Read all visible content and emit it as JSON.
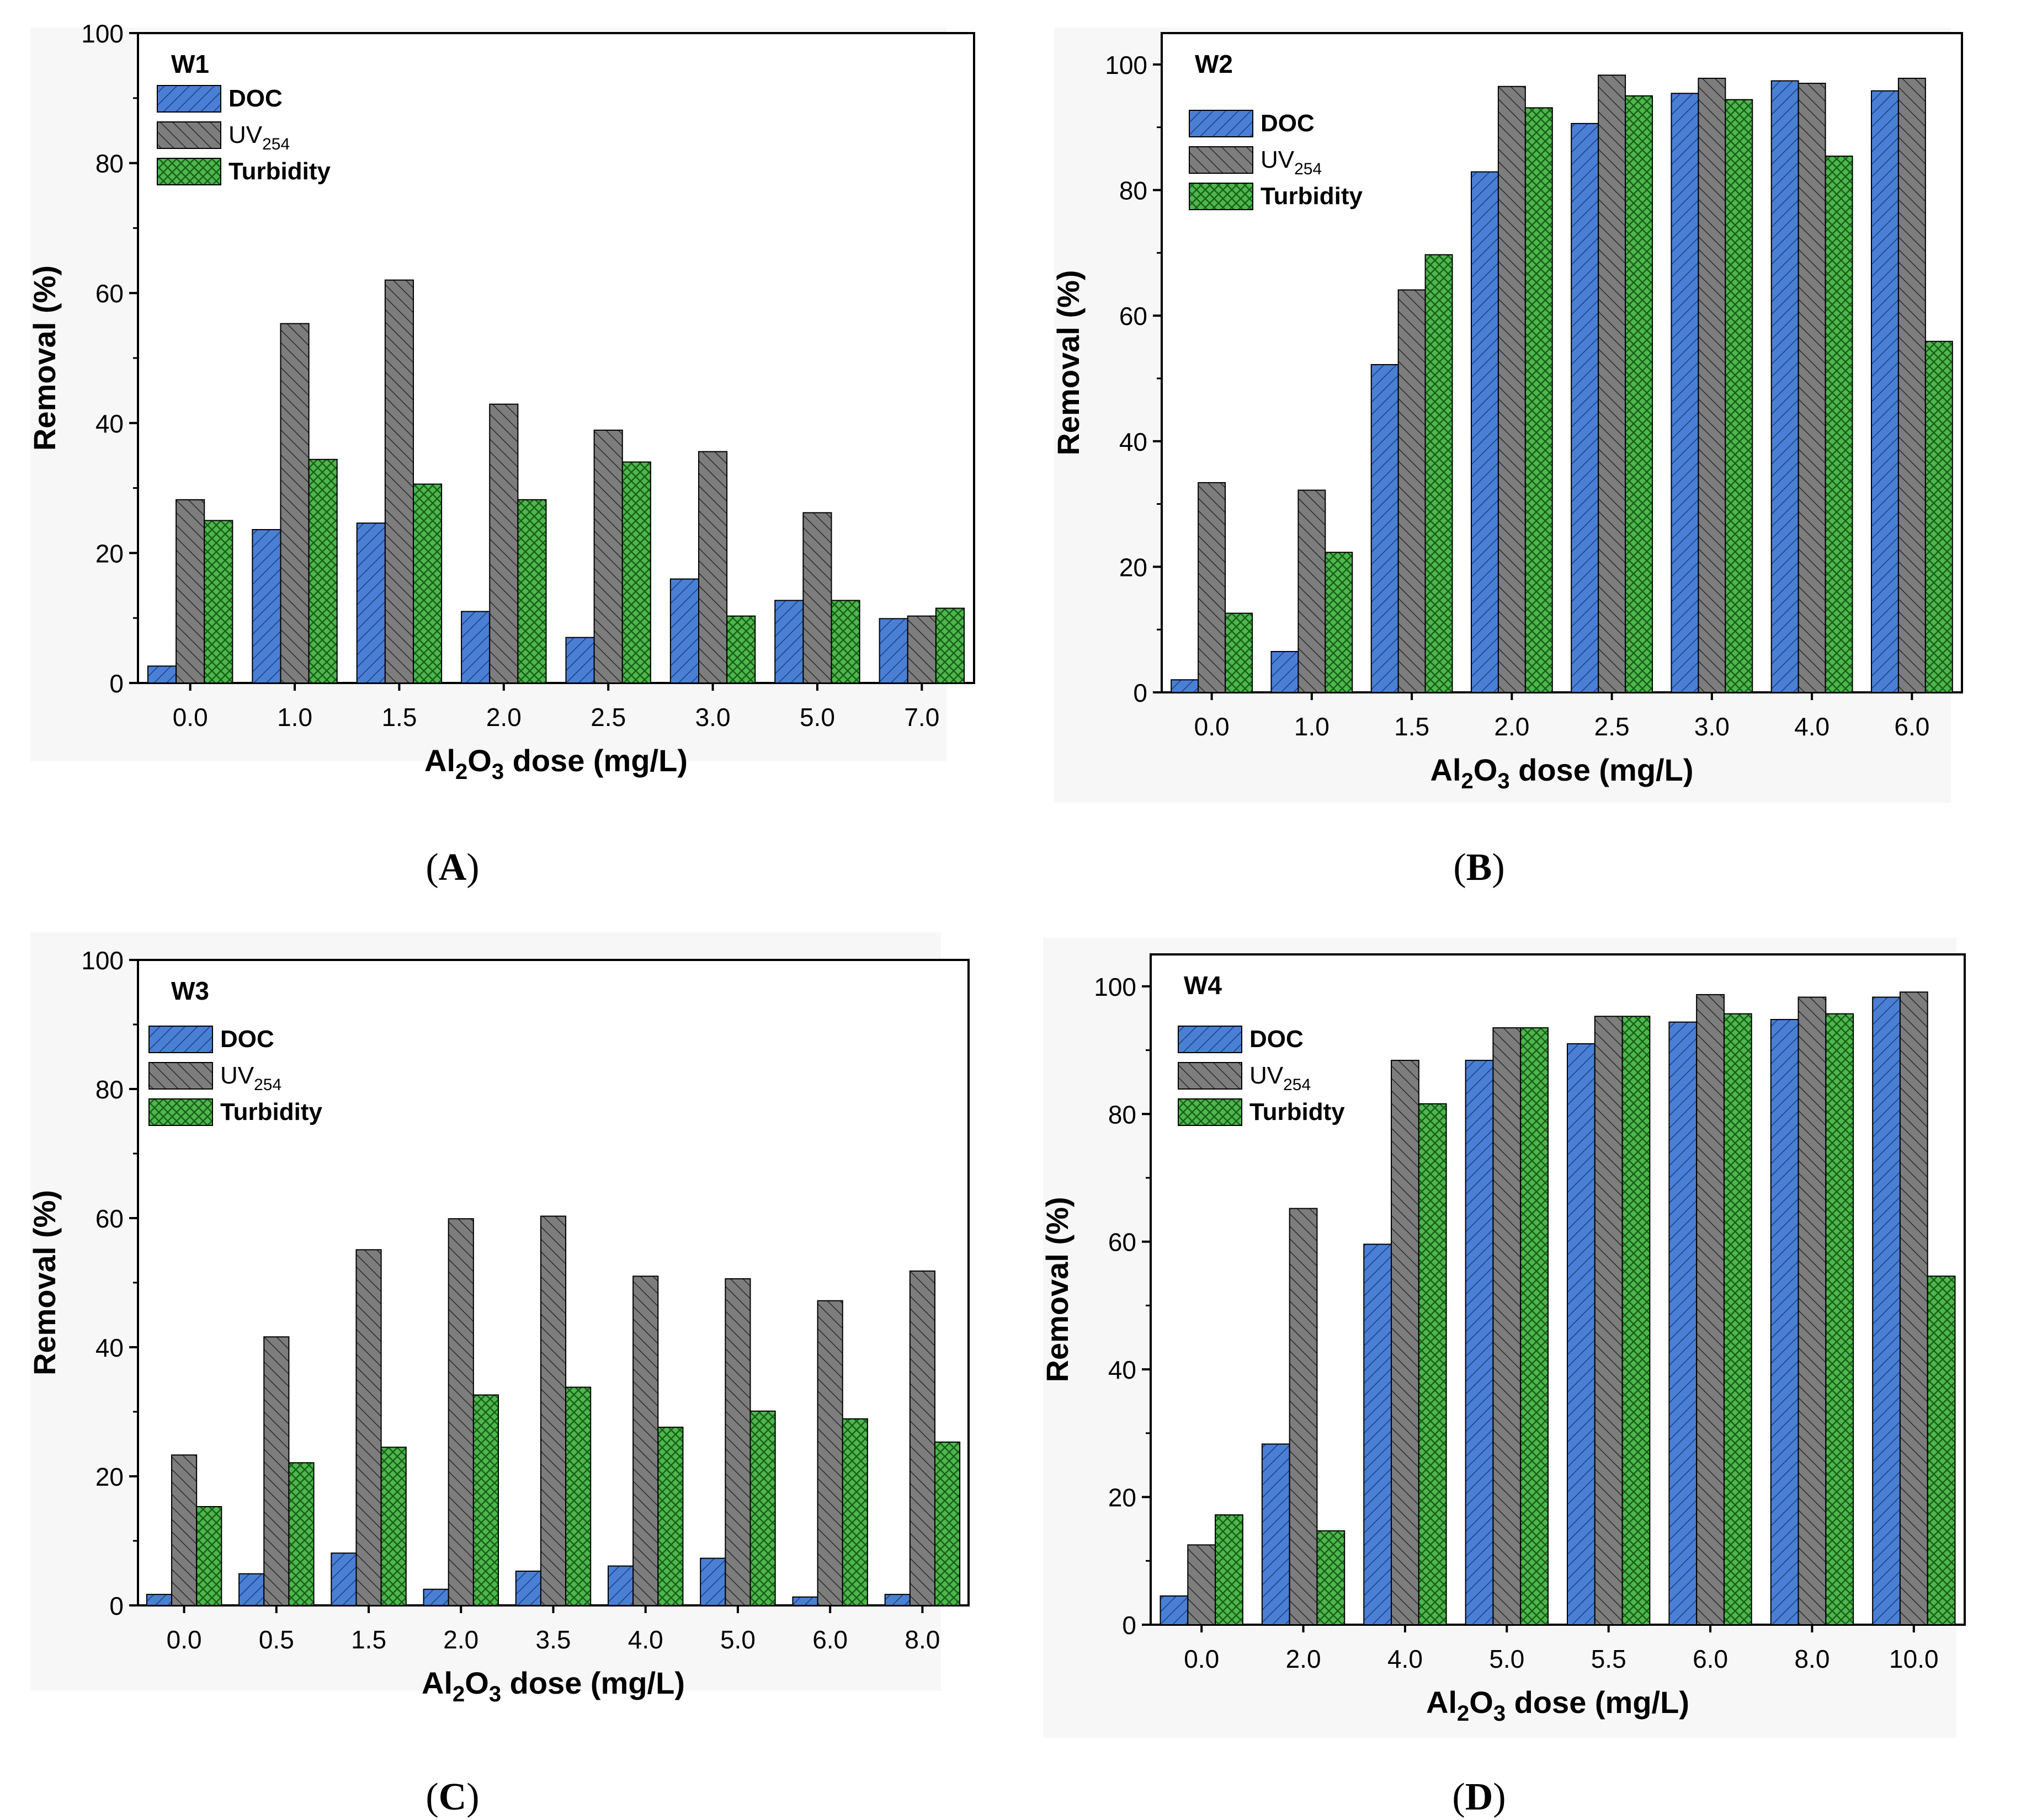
{
  "legend_labels": {
    "doc": "DOC",
    "uv_main": "UV",
    "uv_sub": "254",
    "turbidity": "Turbidity",
    "turbidity_alt": "Turbidty"
  },
  "colors": {
    "doc": "#4a7fd6",
    "uv": "#7d7d7d",
    "turbidity": "#4cb84c",
    "axis": "#000000",
    "text": "#000000"
  },
  "chart_data": [
    {
      "type": "bar",
      "panel": "A",
      "caption": "(A)",
      "title": "W1",
      "xlabel": "Al2O3 dose (mg/L)",
      "ylabel": "Removal (%)",
      "ylim": [
        0,
        100
      ],
      "yticks": [
        0,
        20,
        40,
        60,
        80,
        100
      ],
      "categories": [
        "0.0",
        "1.0",
        "1.5",
        "2.0",
        "2.5",
        "3.0",
        "5.0",
        "7.0"
      ],
      "series": [
        {
          "name": "DOC",
          "values": [
            2.6,
            23.6,
            24.6,
            11.0,
            7.0,
            16.0,
            12.7,
            9.9
          ]
        },
        {
          "name": "UV254",
          "values": [
            28.2,
            55.3,
            62.0,
            42.9,
            38.9,
            35.6,
            26.2,
            10.3
          ]
        },
        {
          "name": "Turbidity",
          "values": [
            25.0,
            34.4,
            30.6,
            28.2,
            34.0,
            10.3,
            12.7,
            11.5
          ]
        }
      ],
      "legend_turbidity_key": "turbidity"
    },
    {
      "type": "bar",
      "panel": "B",
      "caption": "(B)",
      "title": "W2",
      "xlabel": "Al2O3 dose (mg/L)",
      "ylabel": "Removal (%)",
      "ylim": [
        0,
        105
      ],
      "yticks": [
        0,
        20,
        40,
        60,
        80,
        100
      ],
      "categories": [
        "0.0",
        "1.0",
        "1.5",
        "2.0",
        "2.5",
        "3.0",
        "4.0",
        "6.0"
      ],
      "series": [
        {
          "name": "DOC",
          "values": [
            2.0,
            6.5,
            52.2,
            82.9,
            90.6,
            95.4,
            97.4,
            95.8
          ]
        },
        {
          "name": "UV254",
          "values": [
            33.4,
            32.2,
            64.1,
            96.5,
            98.3,
            97.8,
            97.0,
            97.8
          ]
        },
        {
          "name": "Turbidity",
          "values": [
            12.6,
            22.3,
            69.7,
            93.1,
            95.0,
            94.4,
            85.4,
            55.9
          ]
        }
      ],
      "legend_turbidity_key": "turbidity"
    },
    {
      "type": "bar",
      "panel": "C",
      "caption": "(C)",
      "title": "W3",
      "xlabel": "Al2O3 dose (mg/L)",
      "ylabel": "Removal (%)",
      "ylim": [
        0,
        100
      ],
      "yticks": [
        0,
        20,
        40,
        60,
        80,
        100
      ],
      "categories": [
        "0.0",
        "0.5",
        "1.5",
        "2.0",
        "3.5",
        "4.0",
        "5.0",
        "6.0",
        "8.0"
      ],
      "series": [
        {
          "name": "DOC",
          "values": [
            1.7,
            4.9,
            8.1,
            2.5,
            5.3,
            6.1,
            7.3,
            1.3,
            1.7
          ]
        },
        {
          "name": "UV254",
          "values": [
            23.3,
            41.6,
            55.1,
            59.9,
            60.3,
            51.0,
            50.6,
            47.2,
            51.8
          ]
        },
        {
          "name": "Turbidity",
          "values": [
            15.3,
            22.1,
            24.5,
            32.6,
            33.8,
            27.6,
            30.1,
            28.9,
            25.3
          ]
        }
      ],
      "legend_turbidity_key": "turbidity"
    },
    {
      "type": "bar",
      "panel": "D",
      "caption": "(D)",
      "title": "W4",
      "xlabel": "Al2O3 dose (mg/L)",
      "ylabel": "Removal (%)",
      "ylim": [
        0,
        105
      ],
      "yticks": [
        0,
        20,
        40,
        60,
        80,
        100
      ],
      "categories": [
        "0.0",
        "2.0",
        "4.0",
        "5.0",
        "5.5",
        "6.0",
        "8.0",
        "10.0"
      ],
      "series": [
        {
          "name": "DOC",
          "values": [
            4.5,
            28.3,
            59.6,
            88.4,
            91.0,
            94.4,
            94.8,
            98.3
          ]
        },
        {
          "name": "UV254",
          "values": [
            12.5,
            65.2,
            88.4,
            93.5,
            95.3,
            98.7,
            98.3,
            99.1
          ]
        },
        {
          "name": "Turbidity",
          "values": [
            17.2,
            14.7,
            81.6,
            93.5,
            95.3,
            95.7,
            95.7,
            54.6
          ]
        }
      ],
      "legend_turbidity_key": "turbidity_alt"
    }
  ]
}
